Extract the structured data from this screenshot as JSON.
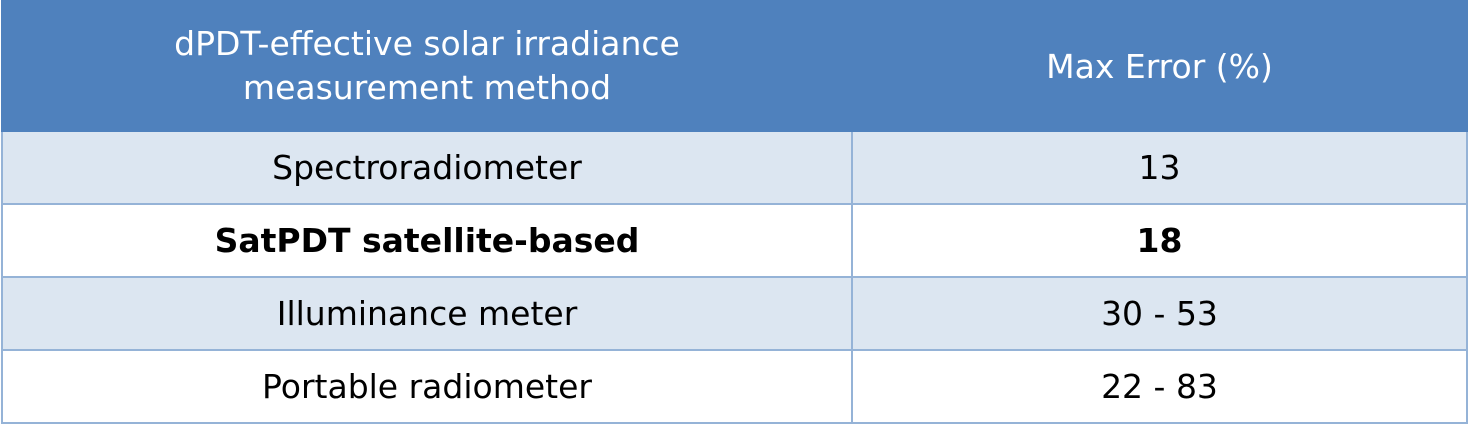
{
  "table": {
    "header": [
      "dPDT-effective solar irradiance measurement method",
      "Max Error (%)"
    ],
    "rows": [
      [
        "Spectroradiometer",
        "13"
      ],
      [
        "SatPDT satellite-based",
        "18"
      ],
      [
        "Illuminance meter",
        "30 - 53"
      ],
      [
        "Portable radiometer",
        "22 - 83"
      ]
    ]
  }
}
